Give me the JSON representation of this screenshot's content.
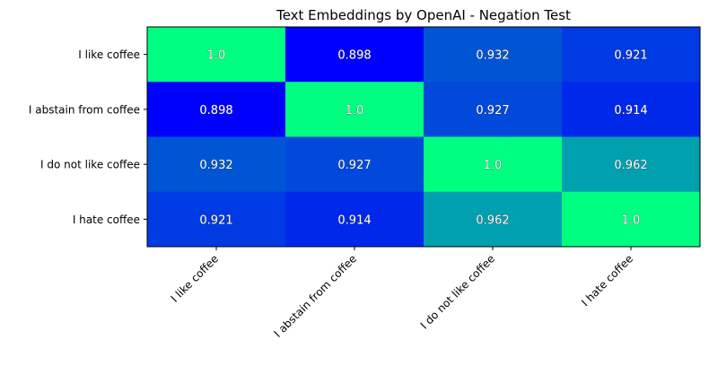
{
  "chart_data": {
    "type": "heatmap",
    "title": "Text Embeddings by OpenAI - Negation Test",
    "xlabel": "",
    "ylabel": "",
    "row_labels": [
      "I like coffee",
      "I abstain from coffee",
      "I do not like coffee",
      "I hate coffee"
    ],
    "col_labels": [
      "I like coffee",
      "I abstain from coffee",
      "I do not like coffee",
      "I hate coffee"
    ],
    "values": [
      [
        1.0,
        0.898,
        0.932,
        0.921
      ],
      [
        0.898,
        1.0,
        0.927,
        0.914
      ],
      [
        0.932,
        0.927,
        1.0,
        0.962
      ],
      [
        0.921,
        0.914,
        0.962,
        1.0
      ]
    ],
    "cell_labels": [
      [
        "1.0",
        "0.898",
        "0.932",
        "0.921"
      ],
      [
        "0.898",
        "1.0",
        "0.927",
        "0.914"
      ],
      [
        "0.932",
        "0.927",
        "1.0",
        "0.962"
      ],
      [
        "0.921",
        "0.914",
        "0.962",
        "1.0"
      ]
    ],
    "colormap": "winter",
    "color_low": "#0000ff",
    "color_high": "#00ff80",
    "value_range": [
      0.898,
      1.0
    ],
    "grid": false,
    "legend": "none"
  }
}
